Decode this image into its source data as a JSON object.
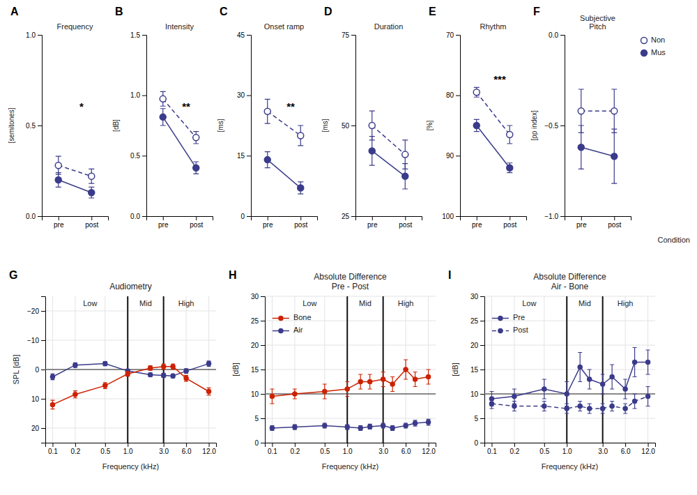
{
  "chart_data": [
    {
      "type": "line",
      "panel_label": "A",
      "title": "Frequency",
      "ylabel": "[semitones]",
      "categories": [
        "pre",
        "post"
      ],
      "ylim": [
        0,
        1.0
      ],
      "yticks": [
        {
          "value": 0,
          "label": "0.0"
        },
        0.5,
        {
          "value": 1.0,
          "label": "1.0"
        }
      ],
      "annotations": [
        "*"
      ],
      "series": [
        {
          "color": "#3B3B8B",
          "marker": "open-circle",
          "line_style": "dashed",
          "values": [
            0.28,
            0.22
          ],
          "errors": [
            0.05,
            0.04
          ]
        },
        {
          "color": "#3B3B8B",
          "marker": "circle",
          "line_style": "solid",
          "values": [
            0.2,
            0.13
          ],
          "errors": [
            0.04,
            0.03
          ]
        }
      ]
    },
    {
      "type": "line",
      "panel_label": "B",
      "title": "Intensity",
      "ylabel": "[dB]",
      "categories": [
        "pre",
        "post"
      ],
      "ylim": [
        0,
        1.5
      ],
      "yticks": [
        {
          "value": 0,
          "label": "0.0"
        },
        0.5,
        {
          "value": 1.0,
          "label": "1.0"
        },
        1.5
      ],
      "annotations": [
        "**"
      ],
      "series": [
        {
          "color": "#3B3B8B",
          "marker": "open-circle",
          "line_style": "dashed",
          "values": [
            0.97,
            0.65
          ],
          "errors": [
            0.06,
            0.05
          ]
        },
        {
          "color": "#3B3B8B",
          "marker": "circle",
          "line_style": "solid",
          "values": [
            0.82,
            0.4
          ],
          "errors": [
            0.07,
            0.05
          ]
        }
      ]
    },
    {
      "type": "line",
      "panel_label": "C",
      "title": "Onset ramp",
      "ylabel": "[ms]",
      "categories": [
        "pre",
        "post"
      ],
      "ylim": [
        0,
        45
      ],
      "yticks": [
        0,
        15,
        30,
        45
      ],
      "annotations": [
        "**"
      ],
      "series": [
        {
          "color": "#3B3B8B",
          "marker": "open-circle",
          "line_style": "dashed",
          "values": [
            26.0,
            20.0
          ],
          "errors": [
            3.0,
            2.5
          ]
        },
        {
          "color": "#3B3B8B",
          "marker": "circle",
          "line_style": "solid",
          "values": [
            14.0,
            7.0
          ],
          "errors": [
            2.0,
            1.5
          ]
        }
      ]
    },
    {
      "type": "line",
      "panel_label": "D",
      "title": "Duration",
      "ylabel": "[ms]",
      "categories": [
        "pre",
        "post"
      ],
      "ylim": [
        25,
        75
      ],
      "yticks": [
        25,
        50,
        75
      ],
      "series": [
        {
          "color": "#3B3B8B",
          "marker": "open-circle",
          "line_style": "dashed",
          "values": [
            50.0,
            42.0
          ],
          "errors": [
            4.0,
            4.0
          ]
        },
        {
          "color": "#3B3B8B",
          "marker": "circle",
          "line_style": "solid",
          "values": [
            43.0,
            36.0
          ],
          "errors": [
            4.0,
            3.5
          ]
        }
      ]
    },
    {
      "type": "line",
      "panel_label": "E",
      "title": "Rhythm",
      "ylabel": "[%]",
      "categories": [
        "pre",
        "post"
      ],
      "ylim": [
        100,
        70
      ],
      "yticks": [
        70,
        80,
        90,
        100
      ],
      "annotations": [
        "***"
      ],
      "series": [
        {
          "color": "#3B3B8B",
          "marker": "open-circle",
          "line_style": "dashed",
          "values": [
            79.5,
            86.5
          ],
          "errors": [
            0.8,
            1.5
          ]
        },
        {
          "color": "#3B3B8B",
          "marker": "circle",
          "line_style": "solid",
          "values": [
            85.0,
            92.0
          ],
          "errors": [
            1.0,
            0.8
          ]
        }
      ]
    },
    {
      "type": "line",
      "panel_label": "F",
      "title": "Subjective\nPitch",
      "ylabel": "[pp index]",
      "xlabel": "Condition",
      "categories": [
        "pre",
        "post"
      ],
      "ylim": [
        -1.0,
        0.0
      ],
      "yticks": [
        {
          "value": -1.0,
          "label": "−1.0"
        },
        {
          "value": -0.5,
          "label": "−0.5"
        },
        {
          "value": 0.0,
          "label": "0.0"
        }
      ],
      "legend": "right",
      "series": [
        {
          "name": "Non",
          "color": "#3B3B8B",
          "marker": "open-circle",
          "line_style": "dashed",
          "values": [
            -0.42,
            -0.42
          ],
          "errors": [
            0.12,
            0.12
          ]
        },
        {
          "name": "Mus",
          "color": "#3B3B8B",
          "marker": "circle",
          "line_style": "solid",
          "values": [
            -0.62,
            -0.67
          ],
          "errors": [
            0.12,
            0.15
          ]
        }
      ]
    },
    {
      "type": "line",
      "panel_label": "G",
      "title": "Audiometry",
      "xlabel": "Frequency (kHz)",
      "ylabel": "SPL [dB]",
      "log": "x",
      "grid": true,
      "x": [
        0.1,
        0.2,
        0.5,
        1.0,
        2.0,
        3.0,
        4.0,
        6.0,
        12.0
      ],
      "xlim": [
        0.08,
        15
      ],
      "xticks": [
        0.1,
        0.2,
        0.5,
        {
          "value": 1.0,
          "label": "1.0"
        },
        {
          "value": 3.0,
          "label": "3.0"
        },
        {
          "value": 6.0,
          "label": "6.0"
        },
        {
          "value": 12.0,
          "label": "12.0"
        }
      ],
      "ylim": [
        25,
        -25
      ],
      "yticks": [
        {
          "value": -20,
          "label": "−20"
        },
        {
          "value": -10,
          "label": "−10"
        },
        0,
        10,
        20
      ],
      "hline": 0,
      "vlines": [
        1.0,
        3.0
      ],
      "annotations": [
        "Low",
        "Mid",
        "High"
      ],
      "series": [
        {
          "color": "#3B3B8B",
          "marker": "circle",
          "line_style": "solid",
          "values": [
            2.5,
            -1.5,
            -2.0,
            0.5,
            1.8,
            2.0,
            2.2,
            0.5,
            -2.0
          ],
          "errors": [
            1.0,
            0.8,
            0.7,
            0.6,
            0.6,
            0.7,
            0.7,
            0.8,
            0.9
          ]
        },
        {
          "color": "#CC2200",
          "marker": "circle",
          "line_style": "solid",
          "values": [
            12.0,
            8.5,
            5.5,
            1.5,
            -0.5,
            -1.0,
            -1.0,
            3.0,
            7.5
          ],
          "errors": [
            1.5,
            1.2,
            1.0,
            0.8,
            0.8,
            0.9,
            0.9,
            1.0,
            1.2
          ]
        }
      ]
    },
    {
      "type": "line",
      "panel_label": "H",
      "title": "Absolute Difference\nPre - Post",
      "xlabel": "Frequency (kHz)",
      "ylabel": "[dB]",
      "log": "x",
      "grid": true,
      "legend": "upper left",
      "x": [
        0.1,
        0.2,
        0.5,
        1.0,
        1.5,
        2.0,
        3.0,
        4.0,
        6.0,
        8.0,
        12.0
      ],
      "xlim": [
        0.08,
        15
      ],
      "xticks": [
        0.1,
        0.2,
        0.5,
        {
          "value": 1.0,
          "label": "1.0"
        },
        {
          "value": 3.0,
          "label": "3.0"
        },
        {
          "value": 6.0,
          "label": "6.0"
        },
        {
          "value": 12.0,
          "label": "12.0"
        }
      ],
      "ylim": [
        0,
        30
      ],
      "yticks": [
        0,
        5,
        10,
        15,
        20,
        25,
        30
      ],
      "hline": 10,
      "vlines": [
        1.0,
        3.0
      ],
      "annotations": [
        "Low",
        "Mid",
        "High"
      ],
      "series": [
        {
          "name": "Bone",
          "color": "#CC2200",
          "marker": "circle",
          "line_style": "solid",
          "values": [
            9.5,
            10.0,
            10.5,
            11.0,
            12.5,
            12.5,
            13.0,
            12.0,
            15.0,
            13.0,
            13.5
          ],
          "errors": [
            1.5,
            1.0,
            1.5,
            1.5,
            1.5,
            1.5,
            1.5,
            1.5,
            2.0,
            1.5,
            1.5
          ]
        },
        {
          "name": "Air",
          "color": "#3B3B8B",
          "marker": "circle",
          "line_style": "solid",
          "values": [
            3.0,
            3.2,
            3.5,
            3.2,
            3.0,
            3.3,
            3.5,
            3.0,
            3.5,
            4.0,
            4.2
          ],
          "errors": [
            0.5,
            0.5,
            0.5,
            0.5,
            0.5,
            0.5,
            0.5,
            0.5,
            0.5,
            0.6,
            0.6
          ]
        }
      ]
    },
    {
      "type": "line",
      "panel_label": "I",
      "title": "Absolute Difference\nAir - Bone",
      "xlabel": "Frequency (kHz)",
      "ylabel": "[dB]",
      "log": "x",
      "grid": true,
      "legend": "upper left",
      "x": [
        0.1,
        0.2,
        0.5,
        1.0,
        1.5,
        2.0,
        3.0,
        4.0,
        6.0,
        8.0,
        12.0
      ],
      "xlim": [
        0.08,
        15
      ],
      "xticks": [
        0.1,
        0.2,
        0.5,
        {
          "value": 1.0,
          "label": "1.0"
        },
        {
          "value": 3.0,
          "label": "3.0"
        },
        {
          "value": 6.0,
          "label": "6.0"
        },
        {
          "value": 12.0,
          "label": "12.0"
        }
      ],
      "ylim": [
        0,
        30
      ],
      "yticks": [
        0,
        5,
        10,
        15,
        20,
        25,
        30
      ],
      "hline": 10,
      "vlines": [
        1.0,
        3.0
      ],
      "annotations": [
        "Low",
        "Mid",
        "High"
      ],
      "series": [
        {
          "name": "Pre",
          "color": "#3B3B8B",
          "marker": "circle",
          "line_style": "solid",
          "values": [
            9.0,
            9.5,
            11.0,
            10.0,
            15.5,
            13.0,
            12.0,
            13.5,
            11.0,
            16.5,
            16.5
          ],
          "errors": [
            1.5,
            1.5,
            2.0,
            2.5,
            3.0,
            2.0,
            2.0,
            2.5,
            2.0,
            3.0,
            2.5
          ]
        },
        {
          "name": "Post",
          "color": "#3B3B8B",
          "marker": "circle",
          "line_style": "dashed",
          "values": [
            8.0,
            7.5,
            7.5,
            7.0,
            7.5,
            7.0,
            7.0,
            7.5,
            7.0,
            8.5,
            9.5
          ],
          "errors": [
            1.0,
            1.0,
            1.0,
            1.0,
            1.0,
            1.0,
            1.0,
            1.0,
            1.0,
            1.5,
            2.0
          ]
        }
      ]
    }
  ]
}
